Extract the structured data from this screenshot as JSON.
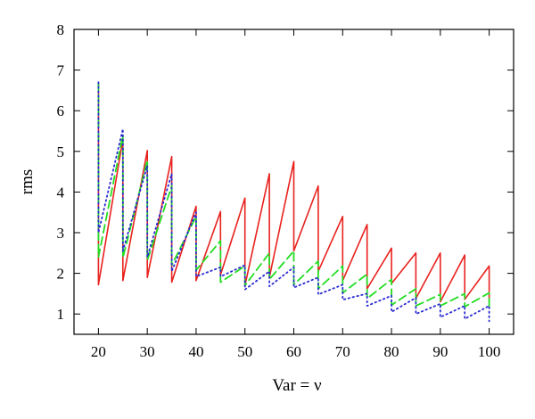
{
  "chart_data": {
    "type": "line",
    "title": "",
    "xlabel": "Var = ν",
    "ylabel": "rms",
    "xlim": [
      15,
      105
    ],
    "ylim": [
      0.5,
      8
    ],
    "xticks": [
      20,
      30,
      40,
      50,
      60,
      70,
      80,
      90,
      100
    ],
    "yticks": [
      1,
      2,
      3,
      4,
      5,
      6,
      7,
      8
    ],
    "legend": "none",
    "grid": false,
    "series": [
      {
        "style": "solid",
        "color": "#e8221e",
        "x": [
          20,
          20,
          25,
          25,
          30,
          30,
          35,
          35,
          40,
          40,
          45,
          45,
          50,
          50,
          55,
          55,
          60,
          60,
          65,
          65,
          70,
          70,
          75,
          75,
          80,
          80,
          85,
          85,
          90,
          90,
          95,
          95,
          100,
          100
        ],
        "y": [
          6.7,
          1.72,
          5.3,
          1.82,
          5.02,
          1.9,
          4.87,
          1.78,
          3.65,
          1.82,
          3.52,
          1.96,
          3.85,
          1.7,
          4.45,
          1.9,
          4.75,
          2.55,
          4.15,
          2.05,
          3.4,
          1.82,
          3.2,
          1.62,
          2.62,
          1.75,
          2.5,
          1.38,
          2.5,
          1.3,
          2.45,
          1.36,
          2.18,
          1.3
        ]
      },
      {
        "style": "dashed",
        "color": "#22dd22",
        "x": [
          20,
          20,
          25,
          25,
          30,
          30,
          35,
          35,
          40,
          40,
          45,
          45,
          50,
          50,
          55,
          55,
          60,
          60,
          65,
          65,
          70,
          70,
          75,
          75,
          80,
          80,
          85,
          85,
          90,
          90,
          95,
          95,
          100,
          100
        ],
        "y": [
          6.7,
          2.4,
          5.4,
          2.38,
          4.78,
          2.32,
          4.15,
          2.2,
          3.4,
          2.08,
          2.8,
          1.78,
          2.18,
          1.7,
          2.5,
          1.85,
          2.55,
          1.72,
          2.3,
          1.62,
          2.18,
          1.52,
          1.98,
          1.38,
          1.85,
          1.22,
          1.62,
          1.2,
          1.48,
          1.2,
          1.5,
          1.18,
          1.52,
          1.12
        ]
      },
      {
        "style": "dotted",
        "color": "#2a2ad0",
        "x": [
          20,
          20,
          25,
          25,
          30,
          30,
          35,
          35,
          40,
          40,
          45,
          45,
          50,
          50,
          55,
          55,
          60,
          60,
          65,
          65,
          70,
          70,
          75,
          75,
          80,
          80,
          85,
          85,
          90,
          90,
          95,
          95,
          100,
          100
        ],
        "y": [
          6.7,
          3.0,
          5.55,
          2.55,
          4.65,
          2.4,
          4.45,
          2.05,
          3.5,
          1.92,
          2.15,
          1.92,
          2.2,
          1.6,
          2.05,
          1.68,
          2.15,
          1.65,
          1.9,
          1.48,
          1.72,
          1.35,
          1.5,
          1.2,
          1.45,
          1.05,
          1.4,
          1.0,
          1.25,
          0.92,
          1.2,
          0.88,
          1.2,
          0.82
        ]
      }
    ]
  }
}
